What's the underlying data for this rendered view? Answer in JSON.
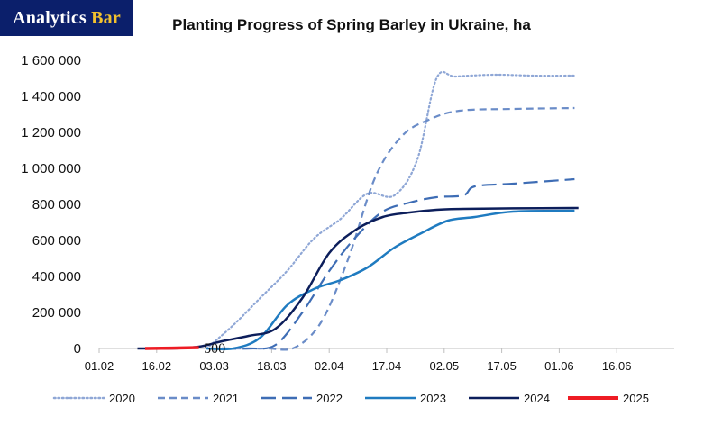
{
  "brand": {
    "part1": "Analytics ",
    "part2": "Bar"
  },
  "chart_data": {
    "type": "line",
    "title": "Planting Progress of Spring Barley in Ukraine, ha",
    "xlabel": "",
    "ylabel": "",
    "x_ticks": [
      "01.02",
      "16.02",
      "03.03",
      "18.03",
      "02.04",
      "17.04",
      "02.05",
      "17.05",
      "01.06",
      "16.06"
    ],
    "y_ticks": [
      "0",
      "200 000",
      "400 000",
      "600 000",
      "800 000",
      "1 000 000",
      "1 200 000",
      "1 400 000",
      "1 600 000"
    ],
    "ylim": [
      0,
      1600000
    ],
    "grid": false,
    "legend_position": "bottom",
    "annotation": {
      "text": "500",
      "x": "01.03",
      "y": 0
    },
    "series": [
      {
        "name": "2020",
        "color": "#8fa7d6",
        "dash": "dotted",
        "x": [
          "01.03",
          "08.03",
          "15.03",
          "22.03",
          "29.03",
          "05.04",
          "12.04",
          "19.04",
          "25.04",
          "30.04",
          "05.05",
          "15.05",
          "25.05",
          "05.06"
        ],
        "y": [
          0,
          130000,
          280000,
          430000,
          610000,
          720000,
          860000,
          850000,
          1050000,
          1500000,
          1510000,
          1520000,
          1515000,
          1515000
        ]
      },
      {
        "name": "2021",
        "color": "#6a8cc8",
        "dash": "short",
        "x": [
          "02.03",
          "10.03",
          "17.03",
          "24.03",
          "31.03",
          "07.04",
          "14.04",
          "21.04",
          "28.04",
          "06.05",
          "20.05",
          "05.06"
        ],
        "y": [
          0,
          0,
          0,
          5000,
          150000,
          500000,
          950000,
          1180000,
          1270000,
          1320000,
          1330000,
          1335000
        ]
      },
      {
        "name": "2022",
        "color": "#3e6db5",
        "dash": "long",
        "x": [
          "05.03",
          "12.03",
          "19.03",
          "26.03",
          "02.04",
          "09.04",
          "16.04",
          "23.04",
          "30.04",
          "07.05",
          "10.05",
          "20.05",
          "05.06"
        ],
        "y": [
          0,
          0,
          20000,
          200000,
          430000,
          620000,
          760000,
          810000,
          840000,
          850000,
          900000,
          915000,
          940000
        ]
      },
      {
        "name": "2023",
        "color": "#1f7bc0",
        "dash": "solid",
        "x": [
          "01.03",
          "08.03",
          "15.03",
          "22.03",
          "29.03",
          "05.04",
          "12.04",
          "19.04",
          "26.04",
          "03.05",
          "10.05",
          "20.05",
          "05.06"
        ],
        "y": [
          0,
          0,
          60000,
          240000,
          330000,
          380000,
          450000,
          560000,
          640000,
          710000,
          730000,
          760000,
          765000
        ]
      },
      {
        "name": "2024",
        "color": "#0c1e5b",
        "dash": "solid",
        "x": [
          "11.02",
          "20.02",
          "27.02",
          "05.03",
          "12.03",
          "19.03",
          "26.03",
          "02.04",
          "09.04",
          "16.04",
          "23.04",
          "30.04",
          "07.05",
          "20.05",
          "06.06"
        ],
        "y": [
          0,
          0,
          10000,
          40000,
          70000,
          110000,
          280000,
          530000,
          660000,
          730000,
          755000,
          770000,
          775000,
          778000,
          780000
        ]
      },
      {
        "name": "2025",
        "color": "#ee1c24",
        "dash": "solid",
        "x": [
          "13.02",
          "20.02",
          "27.02"
        ],
        "y": [
          0,
          2000,
          5000
        ]
      }
    ]
  }
}
